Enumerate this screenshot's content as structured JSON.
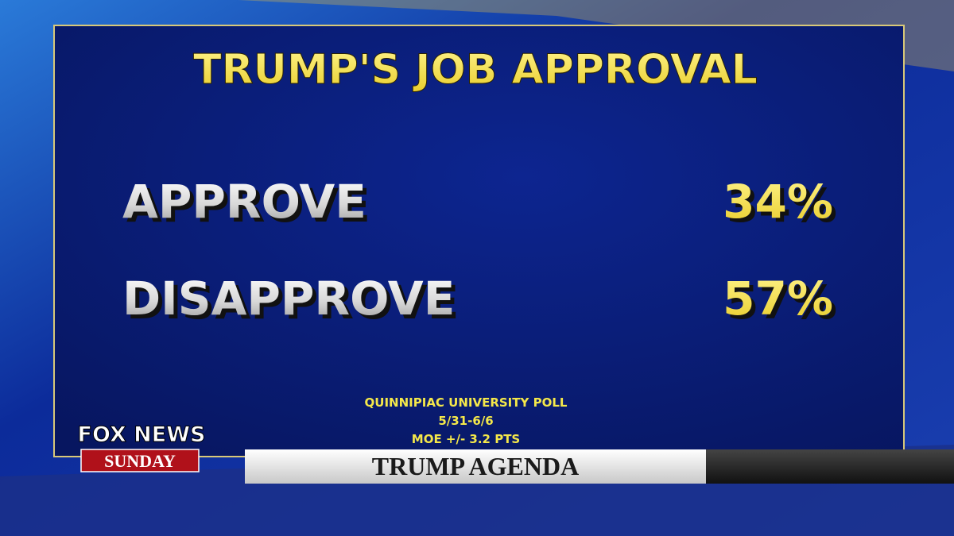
{
  "graphic": {
    "title": "TRUMP'S JOB APPROVAL",
    "rows": [
      [
        "APPROVE",
        "34%"
      ],
      [
        "DISAPPROVE",
        "57%"
      ]
    ],
    "source": [
      "QUINNIPIAC UNIVERSITY POLL",
      "5/31-6/6",
      "MOE +/- 3.2 PTS"
    ]
  },
  "logo": {
    "line1": "FOX NEWS",
    "line2": "SUNDAY"
  },
  "lower_third": {
    "headline": "TRUMP AGENDA"
  }
}
